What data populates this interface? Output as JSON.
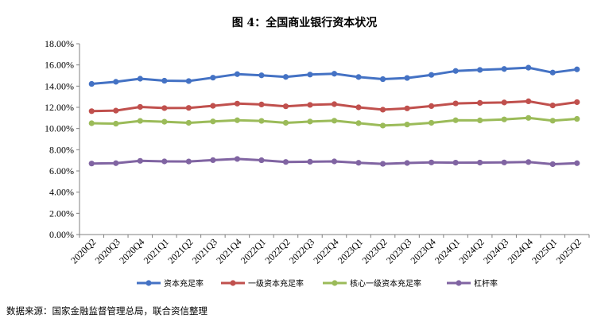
{
  "page": {
    "title": "图 4：全国商业银行资本状况",
    "source": "数据来源：国家金融监督管理总局，联合资信整理"
  },
  "chart_data": {
    "type": "line",
    "title": "",
    "xlabel": "",
    "ylabel": "",
    "ylim": [
      0,
      18
    ],
    "y_ticks": [
      "0.00%",
      "2.00%",
      "4.00%",
      "6.00%",
      "8.00%",
      "10.00%",
      "12.00%",
      "14.00%",
      "16.00%",
      "18.00%"
    ],
    "y_tick_values": [
      0,
      2,
      4,
      6,
      8,
      10,
      12,
      14,
      16,
      18
    ],
    "grid": false,
    "legend_position": "bottom",
    "categories": [
      "2020Q2",
      "2020Q3",
      "2020Q4",
      "2021Q1",
      "2021Q2",
      "2021Q3",
      "2021Q4",
      "2022Q1",
      "2022Q2",
      "2022Q3",
      "2022Q4",
      "2023Q1",
      "2023Q2",
      "2023Q3",
      "2023Q4",
      "2024Q1",
      "2024Q2",
      "2024Q3",
      "2024Q4",
      "2025Q1",
      "2025Q2"
    ],
    "series": [
      {
        "name": "资本充足率",
        "color": "#4472C4",
        "values": [
          14.21,
          14.41,
          14.7,
          14.51,
          14.48,
          14.8,
          15.13,
          15.02,
          14.87,
          15.09,
          15.17,
          14.86,
          14.66,
          14.77,
          15.06,
          15.43,
          15.53,
          15.62,
          15.74,
          15.28,
          15.58
        ]
      },
      {
        "name": "一级资本充足率",
        "color": "#C0504D",
        "values": [
          11.64,
          11.69,
          12.04,
          11.93,
          11.95,
          12.14,
          12.35,
          12.27,
          12.1,
          12.23,
          12.3,
          12.0,
          11.78,
          11.9,
          12.12,
          12.37,
          12.42,
          12.46,
          12.57,
          12.18,
          12.49
        ]
      },
      {
        "name": "核心一级资本充足率",
        "color": "#9BBB59",
        "values": [
          10.5,
          10.46,
          10.72,
          10.64,
          10.54,
          10.67,
          10.78,
          10.72,
          10.54,
          10.66,
          10.74,
          10.51,
          10.28,
          10.38,
          10.54,
          10.78,
          10.77,
          10.86,
          11.0,
          10.74,
          10.91
        ]
      },
      {
        "name": "杠杆率",
        "color": "#8064A2",
        "values": [
          6.7,
          6.73,
          6.95,
          6.9,
          6.89,
          7.02,
          7.13,
          7.01,
          6.85,
          6.87,
          6.9,
          6.77,
          6.67,
          6.75,
          6.8,
          6.78,
          6.79,
          6.8,
          6.84,
          6.64,
          6.73
        ]
      }
    ]
  }
}
